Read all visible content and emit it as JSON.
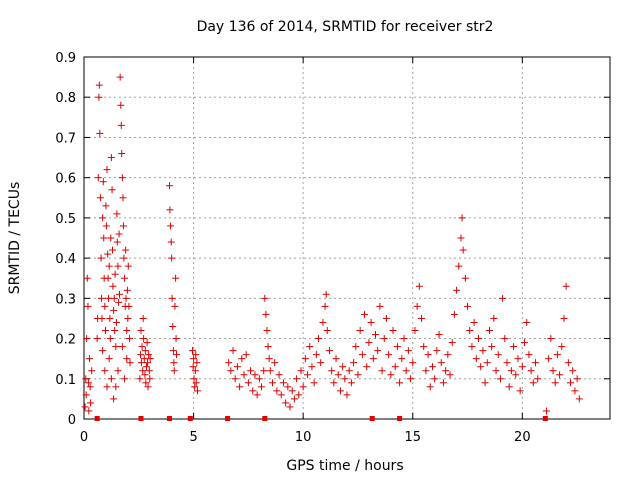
{
  "chart_data": {
    "type": "scatter",
    "title": "Day 136 of 2014, SRMTID for receiver str2",
    "xlabel": "GPS time / hours",
    "ylabel": "SRMTID / TECUs",
    "xlim": [
      0,
      24
    ],
    "ylim": [
      0,
      0.9
    ],
    "grid": true,
    "xticks": [
      0,
      5,
      10,
      15,
      20
    ],
    "xtick_labels": [
      "0",
      "5",
      "10",
      "15",
      "20"
    ],
    "yticks": [
      0,
      0.1,
      0.2,
      0.3,
      0.4,
      0.5,
      0.6,
      0.7,
      0.8,
      0.9
    ],
    "ytick_labels": [
      "0",
      "0.1",
      "0.2",
      "0.3",
      "0.4",
      "0.5",
      "0.6",
      "0.7",
      "0.8",
      "0.9"
    ],
    "marker": "+",
    "color": "#e00000",
    "series": [
      {
        "name": "SRMTID",
        "points": [
          [
            0.05,
            0.03
          ],
          [
            0.08,
            0.1
          ],
          [
            0.1,
            0.06
          ],
          [
            0.12,
            0.2
          ],
          [
            0.15,
            0.35
          ],
          [
            0.18,
            0.28
          ],
          [
            0.2,
            0.09
          ],
          [
            0.22,
            0.02
          ],
          [
            0.25,
            0.15
          ],
          [
            0.28,
            0.08
          ],
          [
            0.3,
            0.04
          ],
          [
            0.35,
            0.12
          ],
          [
            0.6,
            0.2
          ],
          [
            0.62,
            0.25
          ],
          [
            0.65,
            0.6
          ],
          [
            0.68,
            0.8
          ],
          [
            0.7,
            0.83
          ],
          [
            0.72,
            0.71
          ],
          [
            0.75,
            0.55
          ],
          [
            0.78,
            0.4
          ],
          [
            0.8,
            0.3
          ],
          [
            0.82,
            0.25
          ],
          [
            0.85,
            0.5
          ],
          [
            0.88,
            0.59
          ],
          [
            0.9,
            0.45
          ],
          [
            0.92,
            0.35
          ],
          [
            0.95,
            0.28
          ],
          [
            0.98,
            0.22
          ],
          [
            1.0,
            0.53
          ],
          [
            1.02,
            0.48
          ],
          [
            1.05,
            0.62
          ],
          [
            1.08,
            0.41
          ],
          [
            1.1,
            0.35
          ],
          [
            1.12,
            0.3
          ],
          [
            1.15,
            0.38
          ],
          [
            1.18,
            0.25
          ],
          [
            1.2,
            0.2
          ],
          [
            1.22,
            0.45
          ],
          [
            1.25,
            0.65
          ],
          [
            1.28,
            0.57
          ],
          [
            1.3,
            0.42
          ],
          [
            1.32,
            0.33
          ],
          [
            1.35,
            0.27
          ],
          [
            1.38,
            0.3
          ],
          [
            1.4,
            0.22
          ],
          [
            1.42,
            0.36
          ],
          [
            1.45,
            0.18
          ],
          [
            1.48,
            0.24
          ],
          [
            1.5,
            0.51
          ],
          [
            1.52,
            0.44
          ],
          [
            1.55,
            0.38
          ],
          [
            1.58,
            0.29
          ],
          [
            1.6,
            0.46
          ],
          [
            1.62,
            0.31
          ],
          [
            1.65,
            0.85
          ],
          [
            1.68,
            0.78
          ],
          [
            1.7,
            0.73
          ],
          [
            1.72,
            0.66
          ],
          [
            1.75,
            0.6
          ],
          [
            1.78,
            0.55
          ],
          [
            1.8,
            0.48
          ],
          [
            1.82,
            0.4
          ],
          [
            1.85,
            0.35
          ],
          [
            1.88,
            0.28
          ],
          [
            1.9,
            0.42
          ],
          [
            1.92,
            0.3
          ],
          [
            1.95,
            0.22
          ],
          [
            1.98,
            0.32
          ],
          [
            2.0,
            0.25
          ],
          [
            2.02,
            0.38
          ],
          [
            2.05,
            0.28
          ],
          [
            2.08,
            0.2
          ],
          [
            0.95,
            0.12
          ],
          [
            1.05,
            0.08
          ],
          [
            1.15,
            0.15
          ],
          [
            1.25,
            0.1
          ],
          [
            1.35,
            0.05
          ],
          [
            1.55,
            0.12
          ],
          [
            1.75,
            0.18
          ],
          [
            1.85,
            0.1
          ],
          [
            1.95,
            0.15
          ],
          [
            1.45,
            0.08
          ],
          [
            0.85,
            0.17
          ],
          [
            2.1,
            0.14
          ],
          [
            2.55,
            0.1
          ],
          [
            2.58,
            0.16
          ],
          [
            2.6,
            0.22
          ],
          [
            2.62,
            0.14
          ],
          [
            2.65,
            0.18
          ],
          [
            2.68,
            0.12
          ],
          [
            2.7,
            0.25
          ],
          [
            2.72,
            0.2
          ],
          [
            2.75,
            0.15
          ],
          [
            2.78,
            0.11
          ],
          [
            2.8,
            0.17
          ],
          [
            2.82,
            0.09
          ],
          [
            2.85,
            0.13
          ],
          [
            2.88,
            0.19
          ],
          [
            2.9,
            0.14
          ],
          [
            2.92,
            0.08
          ],
          [
            2.95,
            0.16
          ],
          [
            2.98,
            0.12
          ],
          [
            3.0,
            0.1
          ],
          [
            3.02,
            0.15
          ],
          [
            3.9,
            0.58
          ],
          [
            3.92,
            0.52
          ],
          [
            3.95,
            0.48
          ],
          [
            3.98,
            0.44
          ],
          [
            4.0,
            0.4
          ],
          [
            4.02,
            0.3
          ],
          [
            4.05,
            0.23
          ],
          [
            4.08,
            0.17
          ],
          [
            4.1,
            0.14
          ],
          [
            4.12,
            0.12
          ],
          [
            4.15,
            0.28
          ],
          [
            4.18,
            0.35
          ],
          [
            4.2,
            0.2
          ],
          [
            4.22,
            0.16
          ],
          [
            4.95,
            0.17
          ],
          [
            4.98,
            0.13
          ],
          [
            5.0,
            0.15
          ],
          [
            5.02,
            0.1
          ],
          [
            5.05,
            0.08
          ],
          [
            5.08,
            0.12
          ],
          [
            5.1,
            0.16
          ],
          [
            5.12,
            0.09
          ],
          [
            5.15,
            0.14
          ],
          [
            5.18,
            0.07
          ],
          [
            6.6,
            0.14
          ],
          [
            6.7,
            0.12
          ],
          [
            6.8,
            0.17
          ],
          [
            6.9,
            0.1
          ],
          [
            7.0,
            0.13
          ],
          [
            7.1,
            0.08
          ],
          [
            7.2,
            0.15
          ],
          [
            7.3,
            0.11
          ],
          [
            7.4,
            0.16
          ],
          [
            7.5,
            0.09
          ],
          [
            7.6,
            0.12
          ],
          [
            7.7,
            0.07
          ],
          [
            7.8,
            0.11
          ],
          [
            7.9,
            0.06
          ],
          [
            8.0,
            0.1
          ],
          [
            8.1,
            0.08
          ],
          [
            8.2,
            0.12
          ],
          [
            8.25,
            0.3
          ],
          [
            8.3,
            0.26
          ],
          [
            8.35,
            0.22
          ],
          [
            8.4,
            0.18
          ],
          [
            8.45,
            0.15
          ],
          [
            8.5,
            0.12
          ],
          [
            8.6,
            0.09
          ],
          [
            8.7,
            0.14
          ],
          [
            8.8,
            0.07
          ],
          [
            8.9,
            0.11
          ],
          [
            9.0,
            0.06
          ],
          [
            9.1,
            0.09
          ],
          [
            9.2,
            0.04
          ],
          [
            9.3,
            0.08
          ],
          [
            9.4,
            0.03
          ],
          [
            9.5,
            0.07
          ],
          [
            9.6,
            0.05
          ],
          [
            9.7,
            0.1
          ],
          [
            9.8,
            0.06
          ],
          [
            9.9,
            0.12
          ],
          [
            10.0,
            0.08
          ],
          [
            10.1,
            0.15
          ],
          [
            10.2,
            0.11
          ],
          [
            10.3,
            0.18
          ],
          [
            10.4,
            0.13
          ],
          [
            10.5,
            0.09
          ],
          [
            10.6,
            0.16
          ],
          [
            10.7,
            0.2
          ],
          [
            10.8,
            0.14
          ],
          [
            10.9,
            0.24
          ],
          [
            11.0,
            0.28
          ],
          [
            11.05,
            0.31
          ],
          [
            11.1,
            0.22
          ],
          [
            11.2,
            0.17
          ],
          [
            11.3,
            0.12
          ],
          [
            11.4,
            0.09
          ],
          [
            11.5,
            0.15
          ],
          [
            11.6,
            0.11
          ],
          [
            11.7,
            0.07
          ],
          [
            11.8,
            0.13
          ],
          [
            11.9,
            0.1
          ],
          [
            12.0,
            0.06
          ],
          [
            12.1,
            0.12
          ],
          [
            12.2,
            0.09
          ],
          [
            12.3,
            0.14
          ],
          [
            12.4,
            0.18
          ],
          [
            12.5,
            0.11
          ],
          [
            12.6,
            0.22
          ],
          [
            12.7,
            0.16
          ],
          [
            12.8,
            0.26
          ],
          [
            12.9,
            0.13
          ],
          [
            13.0,
            0.19
          ],
          [
            13.1,
            0.24
          ],
          [
            13.2,
            0.15
          ],
          [
            13.3,
            0.21
          ],
          [
            13.4,
            0.17
          ],
          [
            13.5,
            0.28
          ],
          [
            13.6,
            0.12
          ],
          [
            13.7,
            0.2
          ],
          [
            13.8,
            0.25
          ],
          [
            13.9,
            0.16
          ],
          [
            14.0,
            0.11
          ],
          [
            14.1,
            0.22
          ],
          [
            14.2,
            0.13
          ],
          [
            14.3,
            0.18
          ],
          [
            14.4,
            0.09
          ],
          [
            14.5,
            0.15
          ],
          [
            14.6,
            0.2
          ],
          [
            14.7,
            0.12
          ],
          [
            14.8,
            0.17
          ],
          [
            14.9,
            0.1
          ],
          [
            15.0,
            0.14
          ],
          [
            15.1,
            0.22
          ],
          [
            15.2,
            0.28
          ],
          [
            15.3,
            0.33
          ],
          [
            15.4,
            0.25
          ],
          [
            15.5,
            0.18
          ],
          [
            15.6,
            0.12
          ],
          [
            15.7,
            0.16
          ],
          [
            15.8,
            0.08
          ],
          [
            15.9,
            0.13
          ],
          [
            16.0,
            0.1
          ],
          [
            16.1,
            0.17
          ],
          [
            16.2,
            0.21
          ],
          [
            16.3,
            0.14
          ],
          [
            16.4,
            0.09
          ],
          [
            16.5,
            0.12
          ],
          [
            16.6,
            0.16
          ],
          [
            16.7,
            0.11
          ],
          [
            16.8,
            0.19
          ],
          [
            16.9,
            0.26
          ],
          [
            17.0,
            0.32
          ],
          [
            17.1,
            0.38
          ],
          [
            17.2,
            0.45
          ],
          [
            17.25,
            0.5
          ],
          [
            17.3,
            0.42
          ],
          [
            17.4,
            0.35
          ],
          [
            17.5,
            0.28
          ],
          [
            17.6,
            0.22
          ],
          [
            17.7,
            0.18
          ],
          [
            17.8,
            0.24
          ],
          [
            17.9,
            0.15
          ],
          [
            18.0,
            0.2
          ],
          [
            18.1,
            0.13
          ],
          [
            18.2,
            0.17
          ],
          [
            18.3,
            0.09
          ],
          [
            18.4,
            0.14
          ],
          [
            18.5,
            0.22
          ],
          [
            18.6,
            0.18
          ],
          [
            18.7,
            0.25
          ],
          [
            18.8,
            0.12
          ],
          [
            18.9,
            0.16
          ],
          [
            19.0,
            0.1
          ],
          [
            19.1,
            0.3
          ],
          [
            19.2,
            0.2
          ],
          [
            19.3,
            0.14
          ],
          [
            19.4,
            0.08
          ],
          [
            19.5,
            0.12
          ],
          [
            19.6,
            0.18
          ],
          [
            19.7,
            0.11
          ],
          [
            19.8,
            0.15
          ],
          [
            19.9,
            0.07
          ],
          [
            20.0,
            0.13
          ],
          [
            20.1,
            0.19
          ],
          [
            20.2,
            0.24
          ],
          [
            20.3,
            0.16
          ],
          [
            20.4,
            0.12
          ],
          [
            20.5,
            0.09
          ],
          [
            20.6,
            0.14
          ],
          [
            20.7,
            0.1
          ],
          [
            21.1,
            0.02
          ],
          [
            21.2,
            0.15
          ],
          [
            21.3,
            0.2
          ],
          [
            21.4,
            0.12
          ],
          [
            21.5,
            0.09
          ],
          [
            21.6,
            0.16
          ],
          [
            21.7,
            0.11
          ],
          [
            21.8,
            0.18
          ],
          [
            21.9,
            0.25
          ],
          [
            22.0,
            0.33
          ],
          [
            22.1,
            0.14
          ],
          [
            22.2,
            0.09
          ],
          [
            22.3,
            0.12
          ],
          [
            22.4,
            0.07
          ],
          [
            22.5,
            0.1
          ],
          [
            22.6,
            0.05
          ]
        ]
      }
    ],
    "zero_markers": [
      0.6,
      2.6,
      3.9,
      4.85,
      6.55,
      8.25,
      13.15,
      14.4,
      21.05
    ]
  }
}
